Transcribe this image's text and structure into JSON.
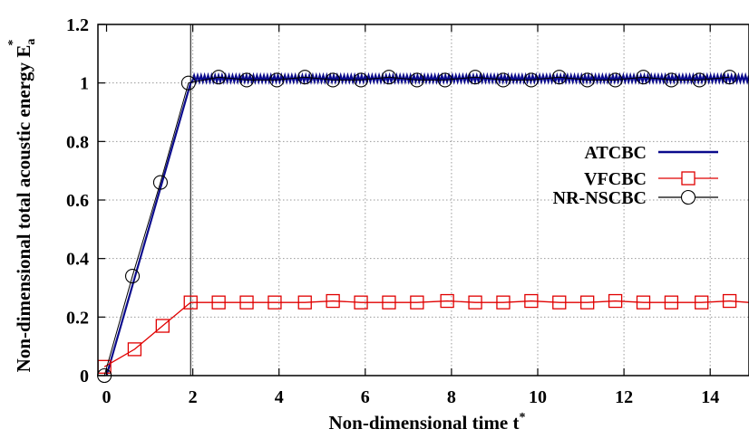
{
  "chart_data": {
    "type": "line",
    "title": "",
    "xlabel": "Non-dimensional time t",
    "xlabel_superscript": "*",
    "ylabel": "Non-dimensional total acoustic energy E",
    "ylabel_subscript": "a",
    "ylabel_superscript": "*",
    "xlim": [
      -0.2,
      14.9
    ],
    "ylim": [
      0,
      1.2
    ],
    "xticks": [
      "0",
      "2",
      "4",
      "6",
      "8",
      "10",
      "12",
      "14"
    ],
    "yticks": [
      "0",
      "0.2",
      "0.4",
      "0.6",
      "0.8",
      "1",
      "1.2"
    ],
    "grid": true,
    "legend_position": "right",
    "reference_line_x": 1.95,
    "series": [
      {
        "name": "ATCBC",
        "color": "#0a0a8c",
        "marker": "none",
        "x": [
          0,
          1.95,
          2.3,
          14.9
        ],
        "y": [
          0,
          1.0,
          1.015,
          1.015
        ],
        "oscillation_amplitude": 0.01
      },
      {
        "name": "VFCBC",
        "color": "#e00000",
        "marker": "square",
        "x": [
          -0.05,
          0.65,
          1.3,
          1.95,
          2.6,
          3.25,
          3.9,
          4.6,
          5.25,
          5.9,
          6.55,
          7.2,
          7.9,
          8.55,
          9.2,
          9.85,
          10.5,
          11.15,
          11.8,
          12.45,
          13.1,
          13.8,
          14.45
        ],
        "y": [
          0.03,
          0.09,
          0.17,
          0.25,
          0.25,
          0.25,
          0.25,
          0.25,
          0.255,
          0.25,
          0.25,
          0.25,
          0.255,
          0.25,
          0.25,
          0.255,
          0.25,
          0.25,
          0.255,
          0.25,
          0.25,
          0.25,
          0.255
        ]
      },
      {
        "name": "NR-NSCBC",
        "color": "#000000",
        "marker": "circle",
        "x": [
          -0.05,
          0.6,
          1.25,
          1.9,
          2.6,
          3.25,
          3.95,
          4.6,
          5.25,
          5.9,
          6.55,
          7.2,
          7.85,
          8.55,
          9.2,
          9.85,
          10.5,
          11.15,
          11.8,
          12.45,
          13.1,
          13.75,
          14.45
        ],
        "y": [
          0.0,
          0.34,
          0.66,
          1.0,
          1.02,
          1.01,
          1.01,
          1.02,
          1.01,
          1.01,
          1.02,
          1.01,
          1.01,
          1.02,
          1.01,
          1.01,
          1.02,
          1.01,
          1.01,
          1.02,
          1.01,
          1.01,
          1.02
        ]
      }
    ]
  }
}
